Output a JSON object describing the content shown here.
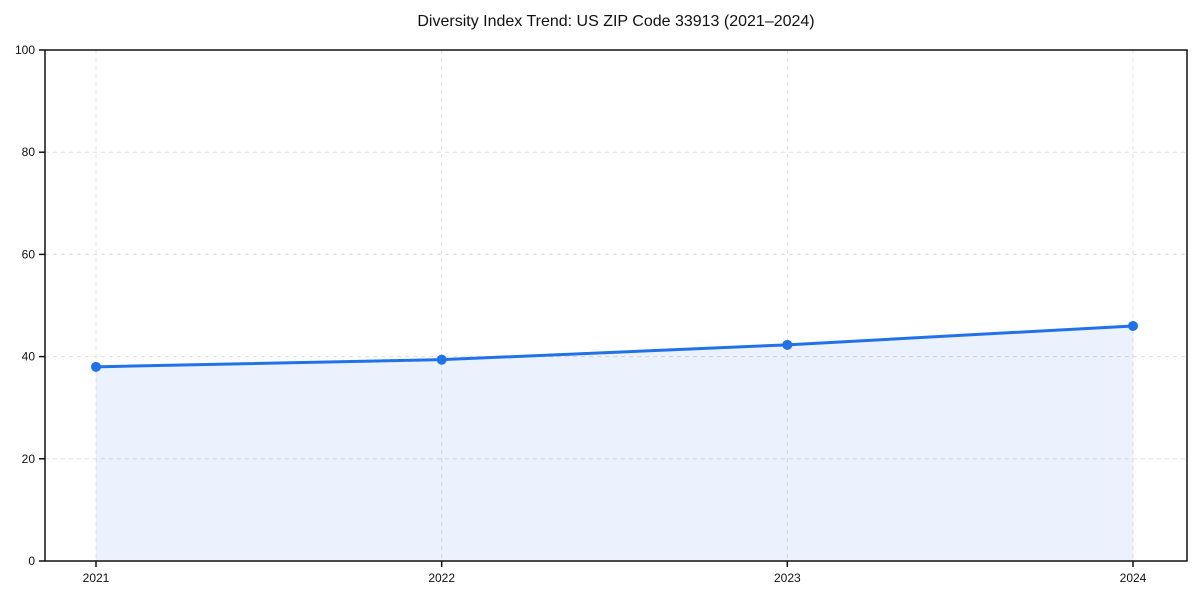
{
  "chart_data": {
    "type": "line",
    "title": "Diversity Index Trend: US ZIP Code 33913 (2021–2024)",
    "x": [
      2021,
      2022,
      2023,
      2024
    ],
    "series": [
      {
        "name": "Diversity Index",
        "values": [
          38.0,
          39.4,
          42.3,
          46.0
        ]
      }
    ],
    "xlabel": "",
    "ylabel": "",
    "ylim": [
      0,
      100
    ],
    "yticks": [
      0,
      20,
      40,
      60,
      80,
      100
    ],
    "xtick_labels": [
      "2021",
      "2022",
      "2023",
      "2024"
    ],
    "grid": true,
    "grid_style": "dashed",
    "legend": "none",
    "area_fill": true,
    "marker": "circle",
    "colors": {
      "line": "#2172e8",
      "marker": "#2172e8",
      "fill": "rgba(33,114,232,0.09)",
      "grid": "#e0e0e0",
      "axis": "#111111",
      "tick_label": "#111111",
      "title": "#111111",
      "background": "#ffffff"
    }
  }
}
